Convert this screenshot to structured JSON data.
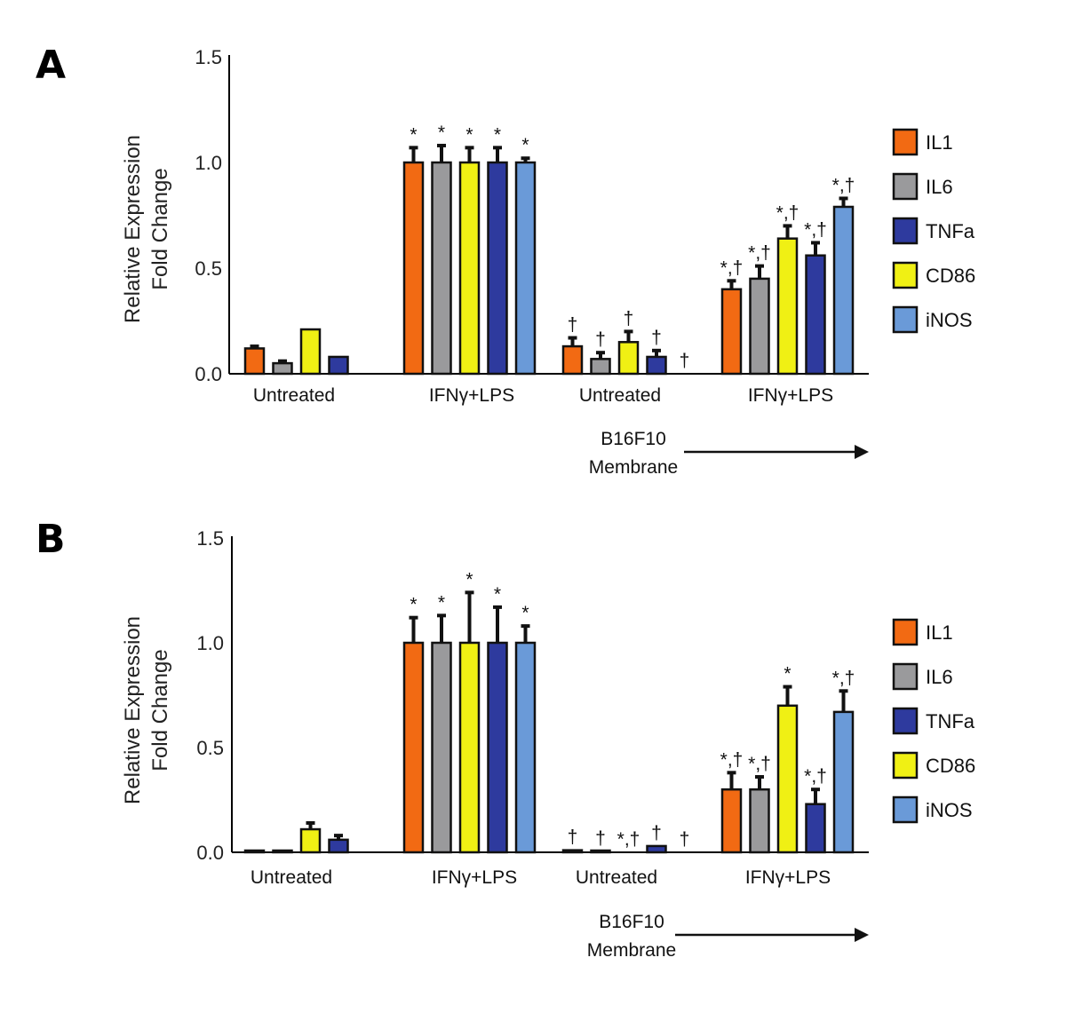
{
  "legend": {
    "colors": {
      "IL1": "#f26a13",
      "IL6": "#9a9a9c",
      "TNFa": "#2e3a9e",
      "CD86": "#f0f014",
      "iNOS": "#6a9ad8"
    }
  },
  "membrane_label": {
    "line1": "B16F10",
    "line2": "Membrane"
  },
  "chart_data": [
    {
      "panel": "A",
      "type": "bar",
      "ylabel_line1": "Relative Expression",
      "ylabel_line2": "Fold Change",
      "ylim": [
        0,
        1.5
      ],
      "yticks": [
        "0.0",
        "0.5",
        "1.0",
        "1.5"
      ],
      "categories": [
        "Untreated",
        "IFNγ+LPS",
        "Untreated",
        "IFNγ+LPS"
      ],
      "series": [
        {
          "name": "IL1",
          "values": [
            0.12,
            1.0,
            0.13,
            0.4
          ],
          "errors": [
            0.01,
            0.07,
            0.04,
            0.04
          ],
          "annotations": [
            "",
            "*",
            "†",
            "*,†"
          ]
        },
        {
          "name": "IL6",
          "values": [
            0.05,
            1.0,
            0.07,
            0.45
          ],
          "errors": [
            0.01,
            0.08,
            0.03,
            0.06
          ],
          "annotations": [
            "",
            "*",
            "†",
            "*,†"
          ]
        },
        {
          "name": "CD86",
          "values": [
            0.21,
            1.0,
            0.15,
            0.64
          ],
          "errors": [
            0,
            0.07,
            0.05,
            0.06
          ],
          "annotations": [
            "",
            "*",
            "†",
            "*,†"
          ]
        },
        {
          "name": "TNFa",
          "values": [
            0.08,
            1.0,
            0.08,
            0.56
          ],
          "errors": [
            0,
            0.07,
            0.03,
            0.06
          ],
          "annotations": [
            "",
            "*",
            "†",
            "*,†"
          ]
        },
        {
          "name": "iNOS",
          "values": [
            0,
            1.0,
            0,
            0.79
          ],
          "errors": [
            0,
            0.02,
            0,
            0.04
          ],
          "annotations": [
            "",
            "*",
            "†",
            "*,†"
          ]
        }
      ]
    },
    {
      "panel": "B",
      "type": "bar",
      "ylabel_line1": "Relative Expression",
      "ylabel_line2": "Fold Change",
      "ylim": [
        0,
        1.5
      ],
      "yticks": [
        "0.0",
        "0.5",
        "1.0",
        "1.5"
      ],
      "categories": [
        "Untreated",
        "IFNγ+LPS",
        "Untreated",
        "IFNγ+LPS"
      ],
      "series": [
        {
          "name": "IL1",
          "values": [
            0.005,
            1.0,
            0.01,
            0.3
          ],
          "errors": [
            0,
            0.12,
            0,
            0.08
          ],
          "annotations": [
            "",
            "*",
            "†",
            "*,†"
          ]
        },
        {
          "name": "IL6",
          "values": [
            0.005,
            1.0,
            0.005,
            0.3
          ],
          "errors": [
            0,
            0.13,
            0,
            0.06
          ],
          "annotations": [
            "",
            "*",
            "†",
            "*,†"
          ]
        },
        {
          "name": "CD86",
          "values": [
            0.11,
            1.0,
            0,
            0.7
          ],
          "errors": [
            0.03,
            0.24,
            0,
            0.09
          ],
          "annotations": [
            "",
            "*",
            "*,†",
            "*"
          ]
        },
        {
          "name": "TNFa",
          "values": [
            0.06,
            1.0,
            0.03,
            0.23
          ],
          "errors": [
            0.02,
            0.17,
            0,
            0.07
          ],
          "annotations": [
            "",
            "*",
            "†",
            "*,†"
          ]
        },
        {
          "name": "iNOS",
          "values": [
            0,
            1.0,
            0,
            0.67
          ],
          "errors": [
            0,
            0.08,
            0,
            0.1
          ],
          "annotations": [
            "",
            "*",
            "†",
            "*,†"
          ]
        }
      ]
    }
  ]
}
